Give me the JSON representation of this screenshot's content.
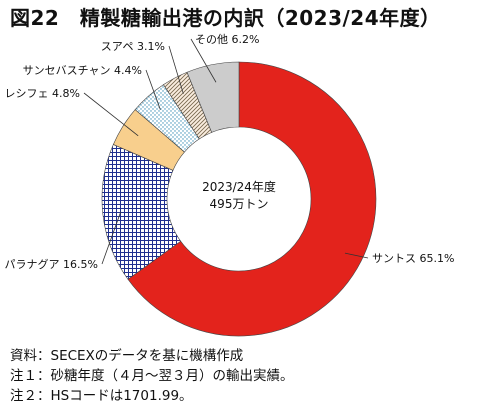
{
  "title": "図22　精製糖輸出港の内訳（2023/24年度）",
  "notes": [
    "資料：SECEXのデータを基に機構作成",
    "注１：砂糖年度（４月～翌３月）の輸出実績。",
    "注２：HSコードは1701.99。"
  ],
  "chart_data": {
    "type": "pie",
    "donut": true,
    "title": "図22　精製糖輸出港の内訳（2023/24年度）",
    "center_text": [
      "2023/24年度",
      "495万トン"
    ],
    "slices": [
      {
        "name": "サントス",
        "value": 65.1,
        "label": "サントス 65.1%",
        "color": "#e3231c",
        "pattern": "solid"
      },
      {
        "name": "パラナグア",
        "value": 16.5,
        "label": "パラナグア 16.5%",
        "color": "#1f2f8f",
        "pattern": "grid"
      },
      {
        "name": "レシフェ",
        "value": 4.8,
        "label": "レシフェ 4.8%",
        "color": "#f8cf8d",
        "pattern": "solid"
      },
      {
        "name": "サンセバスチャン",
        "value": 4.4,
        "label": "サンセバスチャン 4.4%",
        "color": "#3a8fb5",
        "pattern": "dots"
      },
      {
        "name": "スアペ",
        "value": 3.1,
        "label": "スアペ 3.1%",
        "color": "#7a6a50",
        "pattern": "diagonal"
      },
      {
        "name": "その他",
        "value": 6.2,
        "label": "その他 6.2%",
        "color": "#cccccc",
        "pattern": "solid"
      }
    ]
  }
}
